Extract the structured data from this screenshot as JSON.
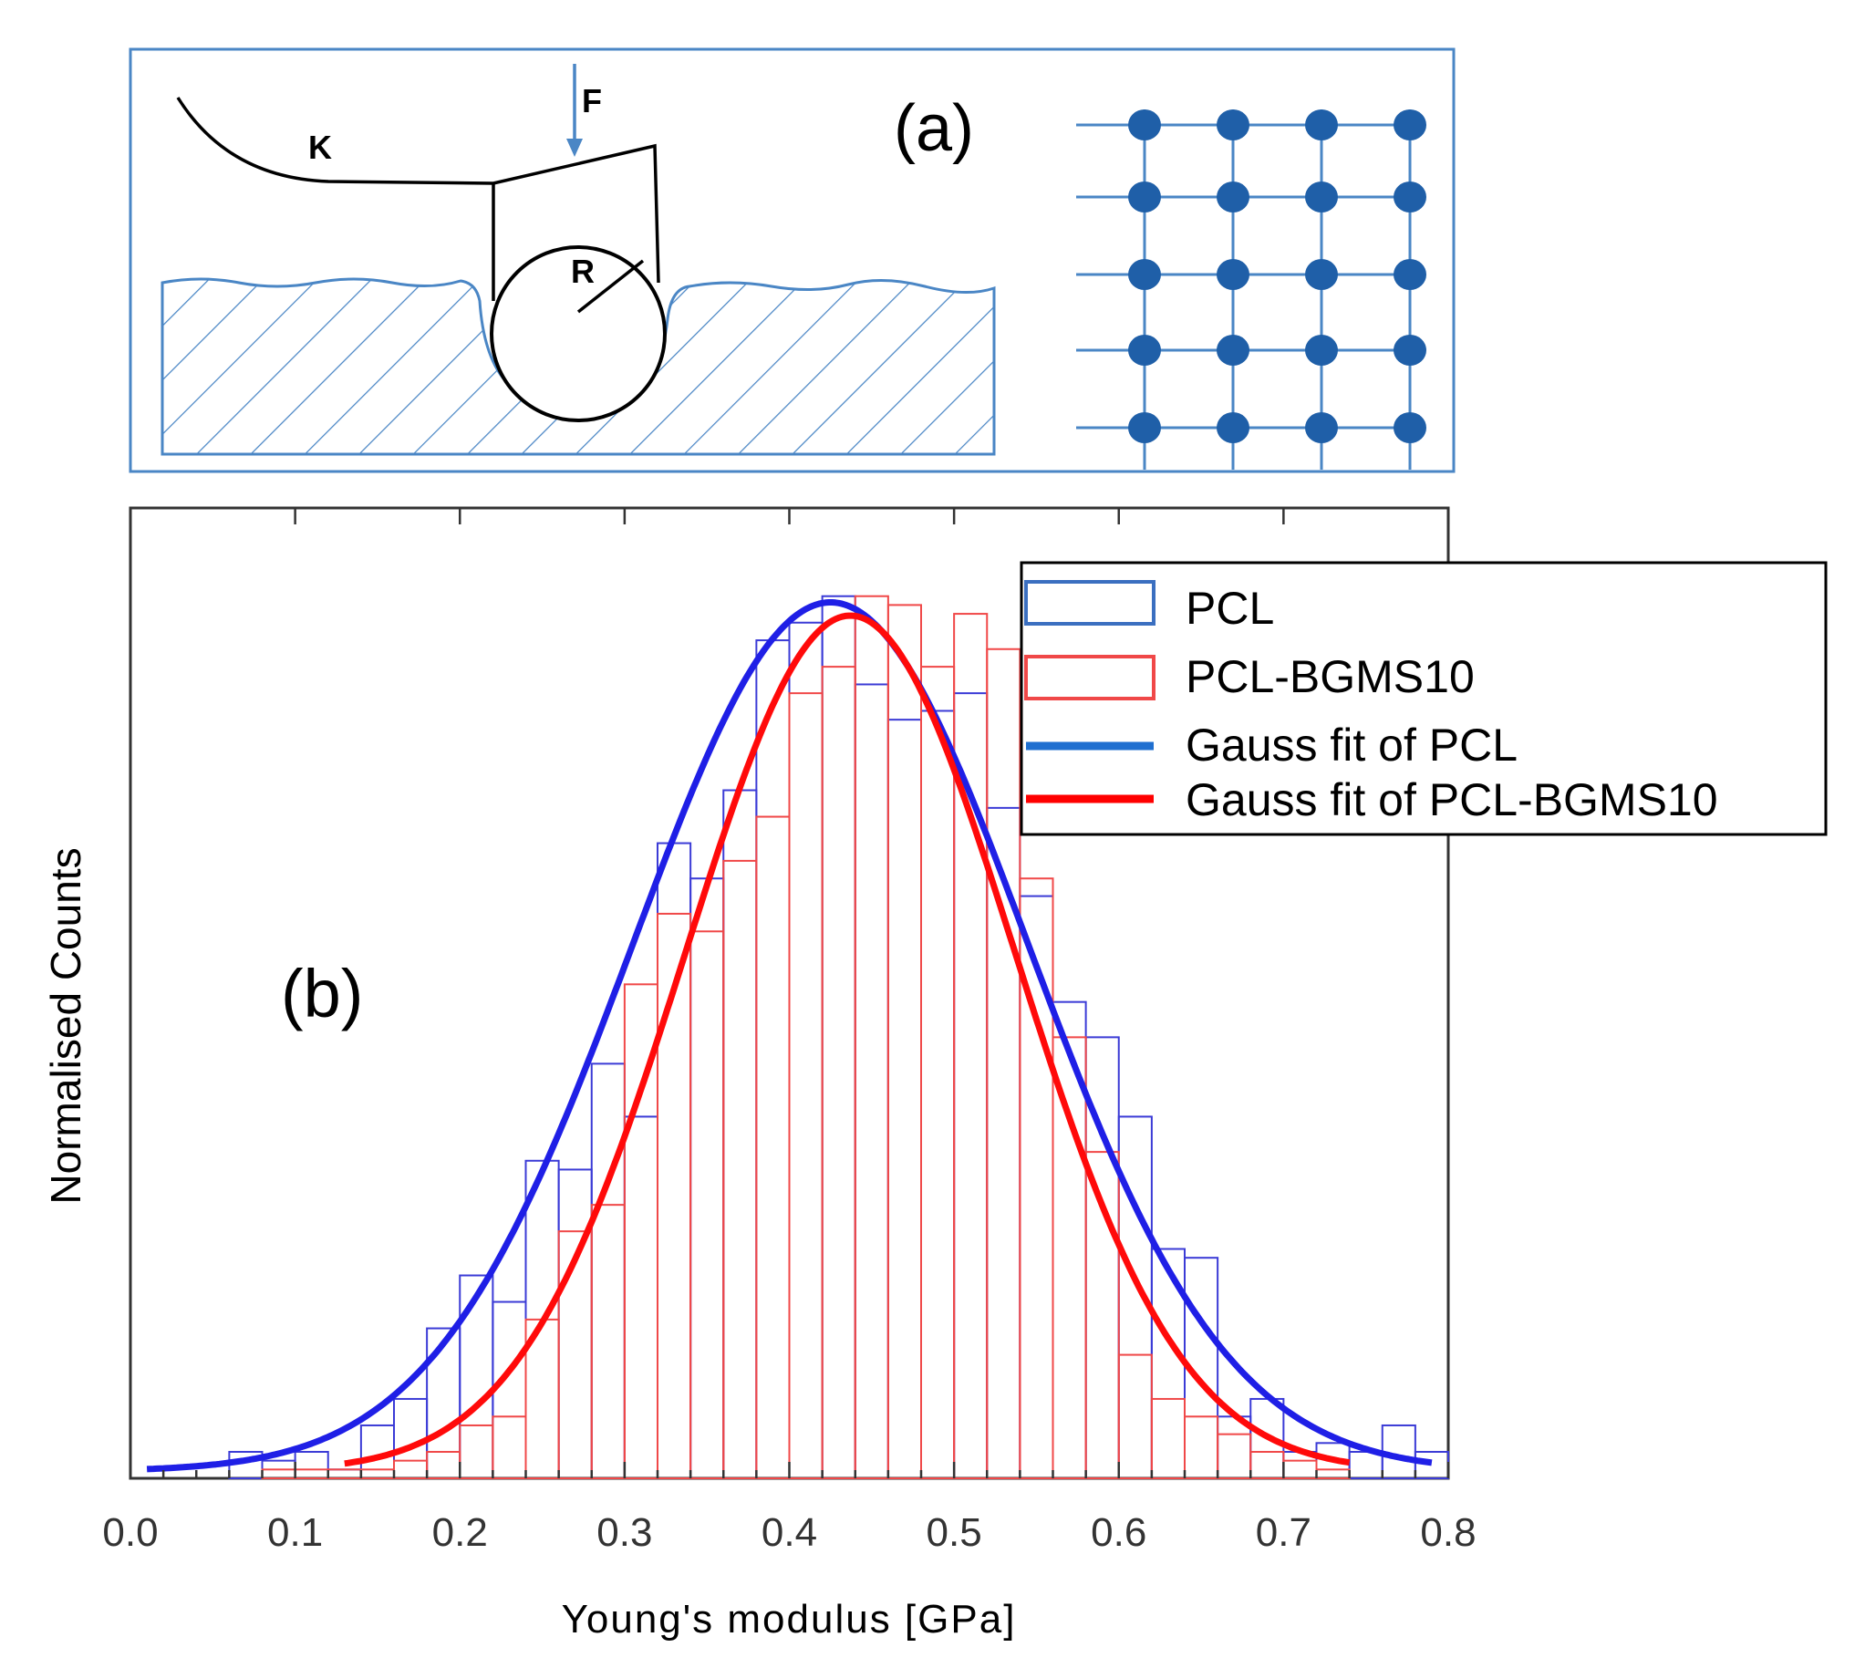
{
  "panel_a": {
    "label": "(a)",
    "force_label": "F",
    "spring_label": "K",
    "radius_label": "R",
    "colors": {
      "frame": "#4a86c5",
      "dot": "#1f5fa8",
      "ink": "#000000"
    }
  },
  "chart_data": {
    "type": "bar",
    "panel_label": "(b)",
    "xlabel": "Young's modulus [GPa]",
    "ylabel": "Normalised Counts",
    "xlim": [
      0.0,
      0.8
    ],
    "ylim": [
      0,
      1.1
    ],
    "x_ticks": [
      "0.0",
      "0.1",
      "0.2",
      "0.3",
      "0.4",
      "0.5",
      "0.6",
      "0.7",
      "0.8"
    ],
    "legend_position": "top-right",
    "legend": [
      {
        "label": "PCL",
        "kind": "hist",
        "color": "#3b3bd6"
      },
      {
        "label": "PCL-BGMS10",
        "kind": "hist",
        "color": "#f04848"
      },
      {
        "label": "Gauss fit of PCL",
        "kind": "line",
        "color": "#1f6fd0"
      },
      {
        "label": "Gauss fit of PCL-BGMS10",
        "kind": "line",
        "color": "#ff0000"
      }
    ],
    "series": [
      {
        "name": "PCL",
        "type": "histogram",
        "color": "#3b3bd6",
        "bin_width": 0.02,
        "x": [
          0.06,
          0.08,
          0.1,
          0.12,
          0.14,
          0.16,
          0.18,
          0.2,
          0.22,
          0.24,
          0.26,
          0.28,
          0.3,
          0.32,
          0.34,
          0.36,
          0.38,
          0.4,
          0.42,
          0.44,
          0.46,
          0.48,
          0.5,
          0.52,
          0.54,
          0.56,
          0.58,
          0.6,
          0.62,
          0.64,
          0.66,
          0.68,
          0.7,
          0.72,
          0.74,
          0.76,
          0.78
        ],
        "values": [
          0.03,
          0.02,
          0.03,
          0.01,
          0.06,
          0.09,
          0.17,
          0.23,
          0.2,
          0.36,
          0.35,
          0.47,
          0.41,
          0.72,
          0.68,
          0.78,
          0.95,
          0.97,
          1.0,
          0.9,
          0.86,
          0.87,
          0.89,
          0.76,
          0.66,
          0.54,
          0.5,
          0.41,
          0.26,
          0.25,
          0.07,
          0.09,
          0.03,
          0.04,
          0.03,
          0.06,
          0.03
        ]
      },
      {
        "name": "PCL-BGMS10",
        "type": "histogram",
        "color": "#f04848",
        "bin_width": 0.02,
        "x": [
          0.08,
          0.1,
          0.12,
          0.14,
          0.16,
          0.18,
          0.2,
          0.22,
          0.24,
          0.26,
          0.28,
          0.3,
          0.32,
          0.34,
          0.36,
          0.38,
          0.4,
          0.42,
          0.44,
          0.46,
          0.48,
          0.5,
          0.52,
          0.54,
          0.56,
          0.58,
          0.6,
          0.62,
          0.64,
          0.66,
          0.68,
          0.7,
          0.72
        ],
        "values": [
          0.01,
          0.01,
          0.01,
          0.01,
          0.02,
          0.03,
          0.06,
          0.07,
          0.18,
          0.28,
          0.31,
          0.56,
          0.64,
          0.62,
          0.7,
          0.75,
          0.89,
          0.92,
          1.0,
          0.99,
          0.92,
          0.98,
          0.94,
          0.68,
          0.5,
          0.37,
          0.14,
          0.09,
          0.07,
          0.05,
          0.03,
          0.02,
          0.01
        ]
      }
    ],
    "fits": [
      {
        "name": "Gauss fit of PCL",
        "color": "#1f1fe6",
        "center": 0.425,
        "sigma": 0.12,
        "amplitude": 0.985
      },
      {
        "name": "Gauss fit of PCL-BGMS10",
        "color": "#ff0a0a",
        "center": 0.437,
        "sigma": 0.1,
        "amplitude": 0.97
      }
    ]
  }
}
